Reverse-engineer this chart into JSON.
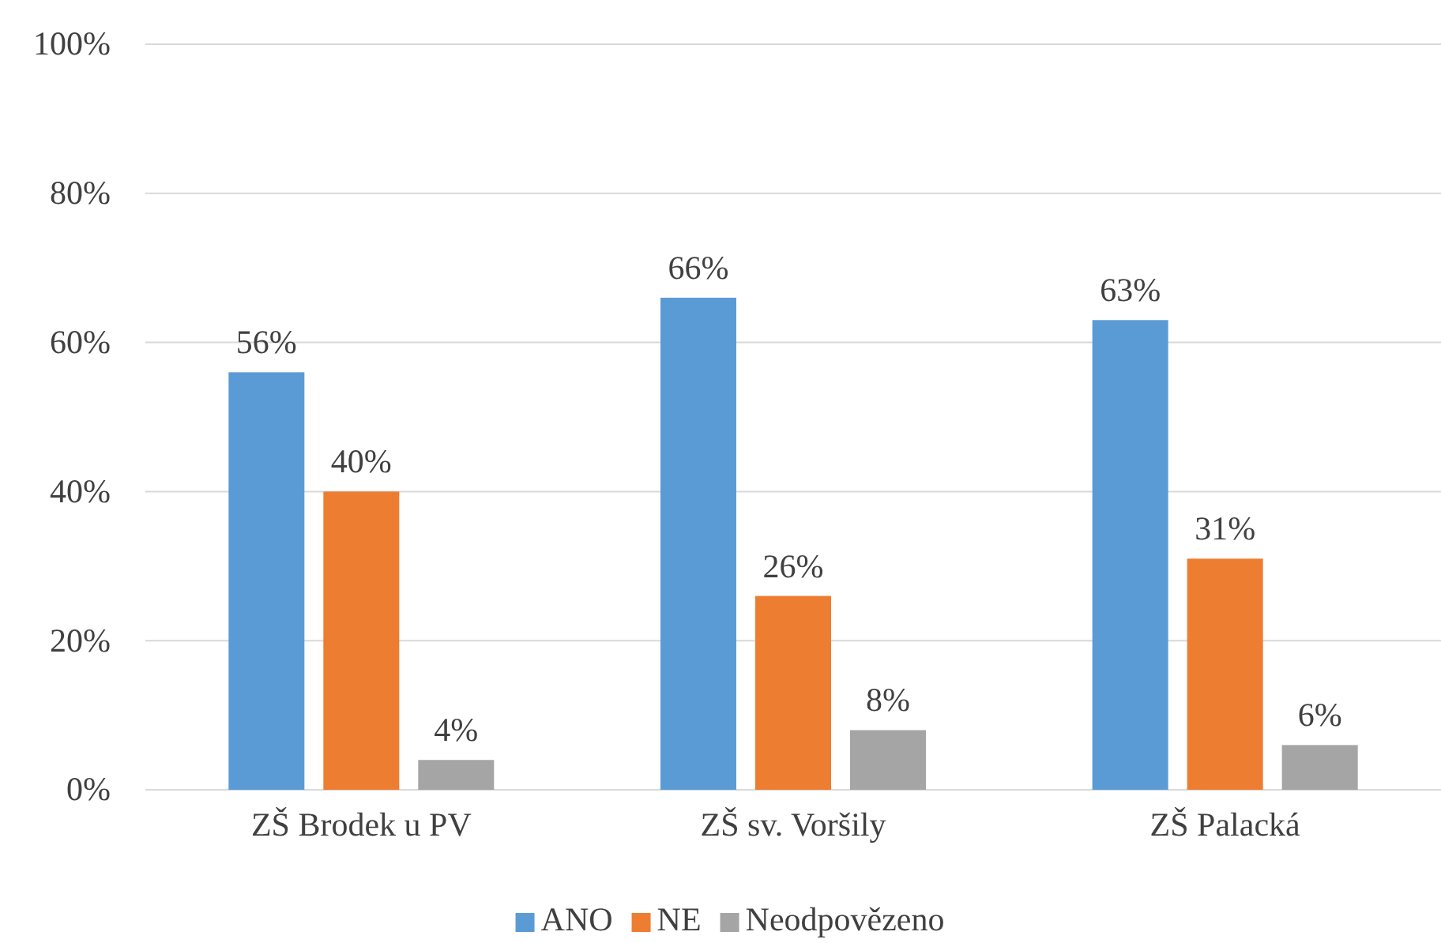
{
  "chart_data": {
    "type": "bar",
    "categories": [
      "ZŠ Brodek u PV",
      "ZŠ sv. Voršily",
      "ZŠ Palacká"
    ],
    "series": [
      {
        "name": "ANO",
        "color": "#5b9bd5",
        "values": [
          56,
          66,
          63
        ],
        "value_labels": [
          "56%",
          "66%",
          "63%"
        ]
      },
      {
        "name": "NE",
        "color": "#ed7d31",
        "values": [
          40,
          26,
          31
        ],
        "value_labels": [
          "40%",
          "26%",
          "31%"
        ]
      },
      {
        "name": "Neodpovězeno",
        "color": "#a5a5a5",
        "values": [
          4,
          8,
          6
        ],
        "value_labels": [
          "4%",
          "8%",
          "6%"
        ]
      }
    ],
    "ylim": [
      0,
      100
    ],
    "yticks": [
      {
        "value": 0,
        "label": "0%"
      },
      {
        "value": 20,
        "label": "20%"
      },
      {
        "value": 40,
        "label": "40%"
      },
      {
        "value": 60,
        "label": "60%"
      },
      {
        "value": 80,
        "label": "80%"
      },
      {
        "value": 100,
        "label": "100%"
      }
    ],
    "grid": "y",
    "legend": "bottom"
  }
}
